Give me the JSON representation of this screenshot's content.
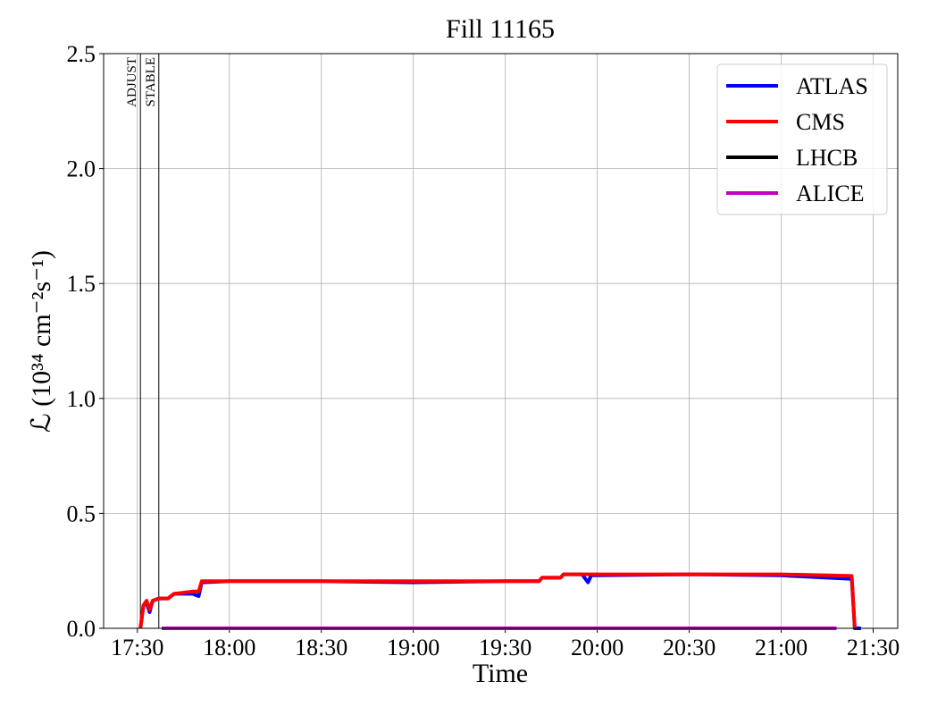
{
  "chart_data": {
    "type": "line",
    "title": "Fill 11165",
    "x_label": "Time",
    "y_label": "ℒ (10³⁴ cm⁻²s⁻¹)",
    "xlim": [
      "17:19",
      "21:38"
    ],
    "xticks": [
      "17:30",
      "18:00",
      "18:30",
      "19:00",
      "19:30",
      "20:00",
      "20:30",
      "21:00",
      "21:30"
    ],
    "ylim": [
      0,
      2.5
    ],
    "yticks": [
      {
        "value": 0,
        "label": "0.0"
      },
      0.5,
      {
        "value": 1,
        "label": "1.0"
      },
      1.5,
      {
        "value": 2,
        "label": "2.0"
      },
      2.5
    ],
    "grid": true,
    "legend": "upper right",
    "annotations": [
      {
        "x": "17:31",
        "label": "ADJUST"
      },
      {
        "x": "17:37",
        "label": "STABLE"
      }
    ],
    "series": [
      {
        "name": "ATLAS",
        "color": "#0000ff",
        "x": [
          "17:31",
          "17:32",
          "17:33",
          "17:34",
          "17:35",
          "17:37",
          "17:40",
          "17:42",
          "17:48",
          "17:50",
          "17:51",
          "18:00",
          "18:30",
          "19:00",
          "19:30",
          "19:41",
          "19:42",
          "19:48",
          "19:49",
          "19:55",
          "19:57",
          "19:58",
          "20:00",
          "20:30",
          "21:00",
          "21:23",
          "21:24",
          "21:26"
        ],
        "values": [
          0,
          0.1,
          0.11,
          0.07,
          0.12,
          0.13,
          0.13,
          0.15,
          0.15,
          0.14,
          0.2,
          0.205,
          0.205,
          0.2,
          0.205,
          0.205,
          0.22,
          0.22,
          0.235,
          0.235,
          0.2,
          0.23,
          0.23,
          0.235,
          0.23,
          0.215,
          0,
          0
        ]
      },
      {
        "name": "CMS",
        "color": "#ff0000",
        "x": [
          "17:31",
          "17:32",
          "17:33",
          "17:34",
          "17:35",
          "17:37",
          "17:40",
          "17:42",
          "17:48",
          "17:50",
          "17:51",
          "18:00",
          "18:30",
          "19:00",
          "19:30",
          "19:41",
          "19:42",
          "19:48",
          "19:49",
          "19:55",
          "20:00",
          "20:30",
          "21:00",
          "21:23",
          "21:24"
        ],
        "values": [
          0,
          0.1,
          0.12,
          0.08,
          0.12,
          0.13,
          0.13,
          0.15,
          0.16,
          0.16,
          0.205,
          0.205,
          0.205,
          0.205,
          0.205,
          0.205,
          0.22,
          0.22,
          0.235,
          0.235,
          0.235,
          0.235,
          0.235,
          0.228,
          0
        ]
      },
      {
        "name": "LHCB",
        "color": "#000000",
        "x": [
          "17:38",
          "21:18"
        ],
        "values": [
          0,
          0
        ]
      },
      {
        "name": "ALICE",
        "color": "#bf00bf",
        "x": [
          "17:38",
          "21:18"
        ],
        "values": [
          0,
          0
        ]
      }
    ]
  }
}
